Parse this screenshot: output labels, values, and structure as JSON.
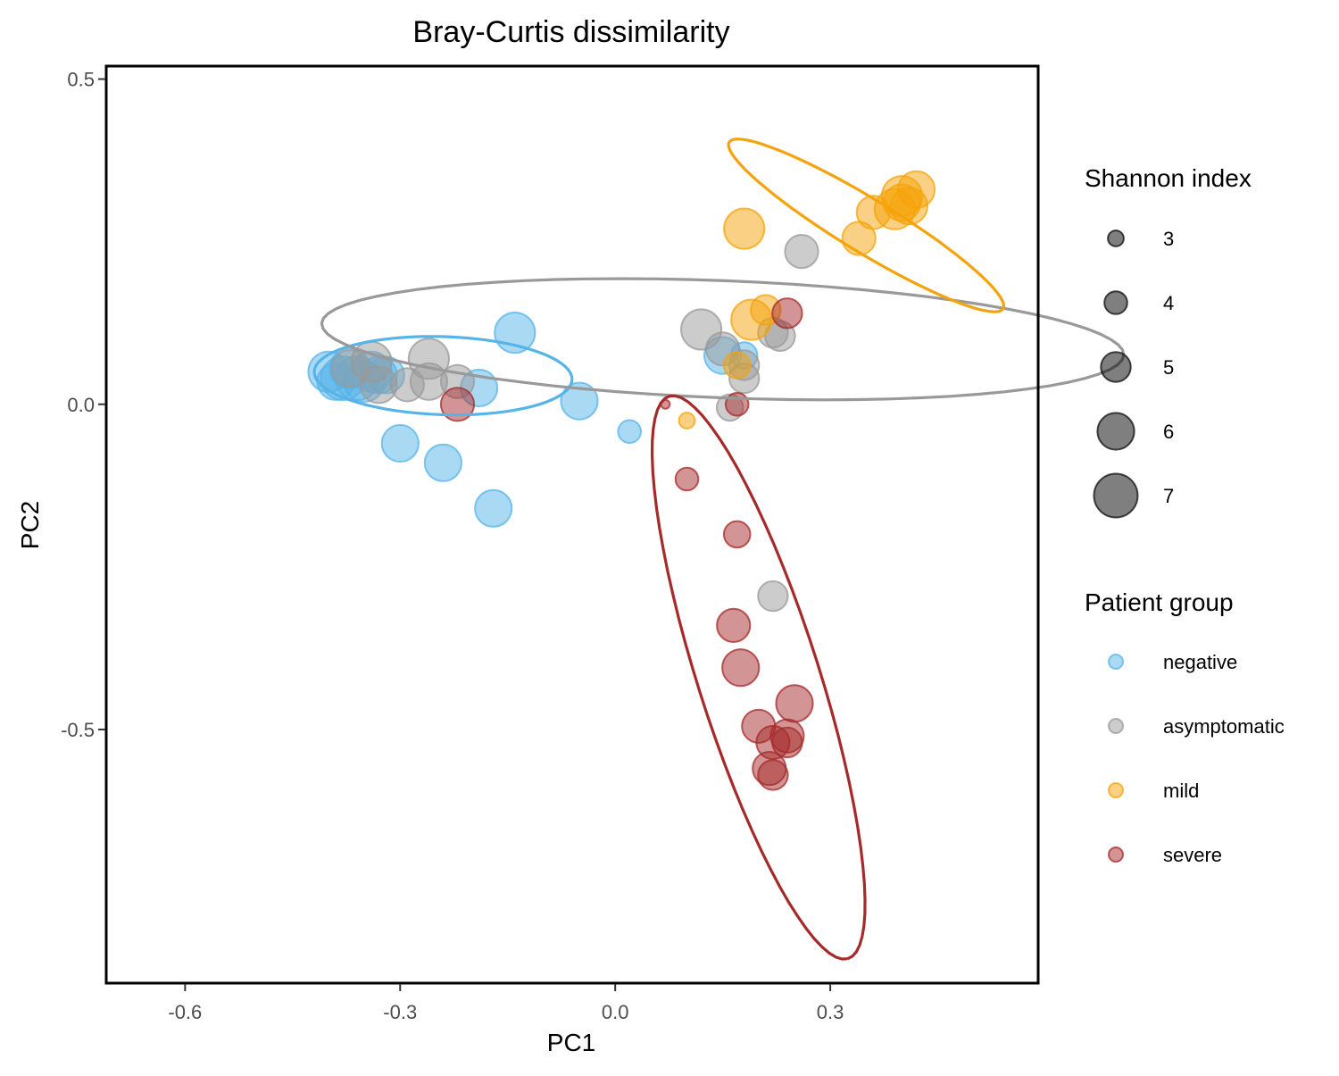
{
  "chart_data": {
    "type": "scatter",
    "title": "Bray-Curtis dissimilarity",
    "xlabel": "PC1",
    "ylabel": "PC2",
    "xlim": [
      -0.71,
      0.59
    ],
    "ylim": [
      -0.89,
      0.52
    ],
    "x_ticks": [
      -0.6,
      -0.3,
      0.0,
      0.3
    ],
    "x_tick_labels": [
      "-0.6",
      "-0.3",
      "0.0",
      "0.3"
    ],
    "y_ticks": [
      0.5,
      0.0,
      -0.5
    ],
    "y_tick_labels": [
      "0.5",
      "0.0",
      "-0.5"
    ],
    "grid": false,
    "point_alpha": 0.5,
    "size_legend": {
      "title": "Shannon index",
      "values": [
        3,
        4,
        5,
        6,
        7
      ],
      "labels": [
        "3",
        "4",
        "5",
        "6",
        "7"
      ],
      "color": "#000000"
    },
    "group_legend": {
      "title": "Patient group",
      "placement": "right"
    },
    "series": [
      {
        "name": "negative",
        "color": "#56B4E9",
        "ellipse": {
          "cx": -0.24,
          "cy": 0.044,
          "rx": 0.18,
          "ry": 0.06,
          "angle_deg": -2
        },
        "points": [
          {
            "x": -0.4,
            "y": 0.05,
            "s": 6.5
          },
          {
            "x": -0.38,
            "y": 0.04,
            "s": 7.0
          },
          {
            "x": -0.37,
            "y": 0.055,
            "s": 6.5
          },
          {
            "x": -0.36,
            "y": 0.04,
            "s": 7.0
          },
          {
            "x": -0.35,
            "y": 0.035,
            "s": 6.5
          },
          {
            "x": -0.34,
            "y": 0.05,
            "s": 6.5
          },
          {
            "x": -0.33,
            "y": 0.045,
            "s": 6.0
          },
          {
            "x": -0.32,
            "y": 0.045,
            "s": 6.0
          },
          {
            "x": -0.39,
            "y": 0.035,
            "s": 6.0
          },
          {
            "x": -0.19,
            "y": 0.025,
            "s": 6.0
          },
          {
            "x": -0.14,
            "y": 0.11,
            "s": 6.5
          },
          {
            "x": -0.05,
            "y": 0.005,
            "s": 6.0
          },
          {
            "x": 0.02,
            "y": -0.042,
            "s": 4.0
          },
          {
            "x": -0.3,
            "y": -0.06,
            "s": 6.0
          },
          {
            "x": -0.24,
            "y": -0.09,
            "s": 6.0
          },
          {
            "x": -0.17,
            "y": -0.16,
            "s": 6.0
          },
          {
            "x": 0.15,
            "y": 0.075,
            "s": 6.0
          },
          {
            "x": 0.18,
            "y": 0.075,
            "s": 4.5
          }
        ]
      },
      {
        "name": "asymptomatic",
        "color": "#999999",
        "ellipse": {
          "cx": 0.15,
          "cy": 0.1,
          "rx": 0.56,
          "ry": 0.09,
          "angle_deg": -2.5
        },
        "points": [
          {
            "x": -0.37,
            "y": 0.055,
            "s": 6.0
          },
          {
            "x": -0.34,
            "y": 0.065,
            "s": 6.5
          },
          {
            "x": -0.33,
            "y": 0.03,
            "s": 6.0
          },
          {
            "x": -0.29,
            "y": 0.03,
            "s": 5.5
          },
          {
            "x": -0.26,
            "y": 0.07,
            "s": 6.5
          },
          {
            "x": -0.26,
            "y": 0.035,
            "s": 6.0
          },
          {
            "x": -0.22,
            "y": 0.035,
            "s": 5.5
          },
          {
            "x": 0.12,
            "y": 0.115,
            "s": 6.5
          },
          {
            "x": 0.15,
            "y": 0.085,
            "s": 5.5
          },
          {
            "x": 0.18,
            "y": 0.06,
            "s": 5.0
          },
          {
            "x": 0.18,
            "y": 0.04,
            "s": 5.0
          },
          {
            "x": 0.22,
            "y": 0.11,
            "s": 5.0
          },
          {
            "x": 0.23,
            "y": 0.105,
            "s": 5.0
          },
          {
            "x": 0.26,
            "y": 0.235,
            "s": 5.5
          },
          {
            "x": 0.16,
            "y": -0.005,
            "s": 4.5
          },
          {
            "x": 0.22,
            "y": -0.295,
            "s": 5.0
          }
        ]
      },
      {
        "name": "mild",
        "color": "#F5A30A",
        "ellipse": {
          "cx": 0.35,
          "cy": 0.275,
          "rx": 0.23,
          "ry": 0.04,
          "angle_deg": -34
        },
        "points": [
          {
            "x": 0.18,
            "y": 0.27,
            "s": 6.5
          },
          {
            "x": 0.19,
            "y": 0.13,
            "s": 6.5
          },
          {
            "x": 0.21,
            "y": 0.145,
            "s": 5.0
          },
          {
            "x": 0.34,
            "y": 0.255,
            "s": 5.5
          },
          {
            "x": 0.36,
            "y": 0.295,
            "s": 5.5
          },
          {
            "x": 0.39,
            "y": 0.3,
            "s": 6.5
          },
          {
            "x": 0.4,
            "y": 0.32,
            "s": 6.5
          },
          {
            "x": 0.41,
            "y": 0.305,
            "s": 6.0
          },
          {
            "x": 0.42,
            "y": 0.33,
            "s": 6.0
          },
          {
            "x": 0.4,
            "y": 0.31,
            "s": 6.0
          },
          {
            "x": 0.17,
            "y": 0.06,
            "s": 4.5
          },
          {
            "x": 0.1,
            "y": -0.025,
            "s": 3.0
          }
        ]
      },
      {
        "name": "severe",
        "color": "#A52A2A",
        "ellipse": {
          "cx": 0.2,
          "cy": -0.42,
          "rx": 0.45,
          "ry": 0.085,
          "angle_deg": -74
        },
        "points": [
          {
            "x": -0.22,
            "y": 0.0,
            "s": 5.5
          },
          {
            "x": 0.07,
            "y": 0.0,
            "s": 2.0
          },
          {
            "x": 0.17,
            "y": 0.0,
            "s": 4.0
          },
          {
            "x": 0.1,
            "y": -0.115,
            "s": 4.0
          },
          {
            "x": 0.17,
            "y": -0.2,
            "s": 4.5
          },
          {
            "x": 0.24,
            "y": 0.14,
            "s": 5.0
          },
          {
            "x": 0.165,
            "y": -0.34,
            "s": 5.5
          },
          {
            "x": 0.175,
            "y": -0.405,
            "s": 6.0
          },
          {
            "x": 0.25,
            "y": -0.46,
            "s": 6.0
          },
          {
            "x": 0.2,
            "y": -0.495,
            "s": 5.5
          },
          {
            "x": 0.22,
            "y": -0.52,
            "s": 5.5
          },
          {
            "x": 0.24,
            "y": -0.51,
            "s": 5.5
          },
          {
            "x": 0.24,
            "y": -0.52,
            "s": 5.0
          },
          {
            "x": 0.215,
            "y": -0.56,
            "s": 5.5
          },
          {
            "x": 0.22,
            "y": -0.57,
            "s": 5.0
          }
        ]
      }
    ]
  }
}
